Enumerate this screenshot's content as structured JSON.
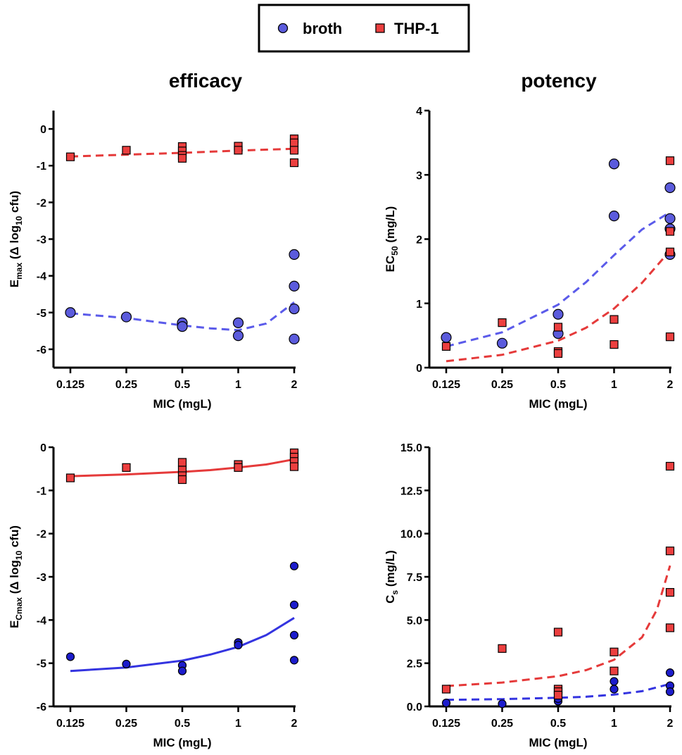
{
  "legend": {
    "series": [
      {
        "name": "broth",
        "marker": "circle",
        "color": "#5b5bdc"
      },
      {
        "name": "THP-1",
        "marker": "square",
        "color": "#ec3f3f"
      }
    ]
  },
  "column_titles": [
    "efficacy",
    "potency"
  ],
  "colors": {
    "broth_fill": "#5b5bdc",
    "broth_fill_dark": "#1c1ccc",
    "broth_line": "#3434e0",
    "broth_line_light": "#5b5bea",
    "thp1_fill": "#ec3f3f",
    "thp1_line": "#e53a3a",
    "axis": "#000000"
  },
  "chart_data": [
    {
      "id": "emax",
      "type": "scatter",
      "title": "efficacy",
      "xlabel": "MIC (mgL)",
      "ylabel_main": "E",
      "ylabel_sub": "max",
      "ylabel_rest_pre": " (Δ log",
      "ylabel_rest_sub": "10",
      "ylabel_rest_post": " cfu)",
      "x_scale": "log2",
      "x_ticks": [
        0.125,
        0.25,
        0.5,
        1,
        2
      ],
      "x_tick_labels": [
        "0.125",
        "0.25",
        "0.5",
        "1",
        "2"
      ],
      "ylim": [
        -6.5,
        0.5
      ],
      "y_ticks": [
        0,
        -1,
        -2,
        -3,
        -4,
        -5,
        -6
      ],
      "y_tick_labels": [
        "0",
        "-1",
        "-2",
        "-3",
        "-4",
        "-5",
        "-6"
      ],
      "series": [
        {
          "name": "broth",
          "marker": "circle",
          "dark": false,
          "points": [
            [
              0.125,
              -5.0
            ],
            [
              0.25,
              -5.12
            ],
            [
              0.5,
              -5.28
            ],
            [
              0.5,
              -5.38
            ],
            [
              1,
              -5.28
            ],
            [
              1,
              -5.63
            ],
            [
              2,
              -3.42
            ],
            [
              2,
              -4.28
            ],
            [
              2,
              -4.9
            ],
            [
              2,
              -5.72
            ]
          ],
          "fit": {
            "style": "dashed",
            "points": [
              [
                0.125,
                -5.02
              ],
              [
                0.25,
                -5.15
              ],
              [
                0.5,
                -5.35
              ],
              [
                0.707,
                -5.43
              ],
              [
                1,
                -5.48
              ],
              [
                1.414,
                -5.3
              ],
              [
                2,
                -4.72
              ]
            ]
          }
        },
        {
          "name": "THP-1",
          "marker": "square",
          "points": [
            [
              0.125,
              -0.76
            ],
            [
              0.25,
              -0.58
            ],
            [
              0.5,
              -0.48
            ],
            [
              0.5,
              -0.6
            ],
            [
              0.5,
              -0.72
            ],
            [
              0.5,
              -0.8
            ],
            [
              1,
              -0.47
            ],
            [
              1,
              -0.58
            ],
            [
              2,
              -0.27
            ],
            [
              2,
              -0.38
            ],
            [
              2,
              -0.58
            ],
            [
              2,
              -0.92
            ]
          ],
          "fit": {
            "style": "dashed",
            "points": [
              [
                0.125,
                -0.75
              ],
              [
                0.25,
                -0.7
              ],
              [
                0.5,
                -0.65
              ],
              [
                1,
                -0.59
              ],
              [
                2,
                -0.54
              ]
            ]
          }
        }
      ]
    },
    {
      "id": "ec50",
      "type": "scatter",
      "title": "potency",
      "xlabel": "MIC (mgL)",
      "ylabel_main": "EC",
      "ylabel_sub": "50",
      "ylabel_rest_pre": " (mg/L)",
      "ylabel_rest_sub": "",
      "ylabel_rest_post": "",
      "x_scale": "log2",
      "x_ticks": [
        0.125,
        0.25,
        0.5,
        1,
        2
      ],
      "x_tick_labels": [
        "0.125",
        "0.25",
        "0.5",
        "1",
        "2"
      ],
      "ylim": [
        0,
        4
      ],
      "y_ticks": [
        0,
        1,
        2,
        3,
        4
      ],
      "y_tick_labels": [
        "0",
        "1",
        "2",
        "3",
        "4"
      ],
      "series": [
        {
          "name": "broth",
          "marker": "circle",
          "dark": false,
          "points": [
            [
              0.125,
              0.47
            ],
            [
              0.25,
              0.38
            ],
            [
              0.5,
              0.83
            ],
            [
              0.5,
              0.53
            ],
            [
              1,
              3.17
            ],
            [
              1,
              2.36
            ],
            [
              2,
              2.8
            ],
            [
              2,
              2.32
            ],
            [
              2,
              2.16
            ],
            [
              2,
              1.76
            ]
          ],
          "fit": {
            "style": "dashed",
            "points": [
              [
                0.125,
                0.33
              ],
              [
                0.25,
                0.55
              ],
              [
                0.5,
                0.98
              ],
              [
                0.707,
                1.33
              ],
              [
                1,
                1.75
              ],
              [
                1.414,
                2.15
              ],
              [
                2,
                2.42
              ]
            ]
          }
        },
        {
          "name": "THP-1",
          "marker": "square",
          "points": [
            [
              0.125,
              0.33
            ],
            [
              0.25,
              0.7
            ],
            [
              0.5,
              0.63
            ],
            [
              0.5,
              0.25
            ],
            [
              0.5,
              0.22
            ],
            [
              1,
              0.75
            ],
            [
              1,
              0.36
            ],
            [
              2,
              3.22
            ],
            [
              2,
              2.12
            ],
            [
              2,
              1.8
            ],
            [
              2,
              0.48
            ]
          ],
          "fit": {
            "style": "dashed",
            "points": [
              [
                0.125,
                0.1
              ],
              [
                0.25,
                0.2
              ],
              [
                0.5,
                0.42
              ],
              [
                0.707,
                0.62
              ],
              [
                1,
                0.92
              ],
              [
                1.414,
                1.32
              ],
              [
                2,
                1.82
              ]
            ]
          }
        }
      ]
    },
    {
      "id": "ecmax",
      "type": "scatter",
      "title": "",
      "xlabel": "MIC (mgL)",
      "ylabel_main": "E",
      "ylabel_sub": "Cmax",
      "ylabel_rest_pre": " (Δ log",
      "ylabel_rest_sub": "10",
      "ylabel_rest_post": " cfu)",
      "x_scale": "log2",
      "x_ticks": [
        0.125,
        0.25,
        0.5,
        1,
        2
      ],
      "x_tick_labels": [
        "0.125",
        "0.25",
        "0.5",
        "1",
        "2"
      ],
      "ylim": [
        -6,
        0
      ],
      "y_ticks": [
        0,
        -1,
        -2,
        -3,
        -4,
        -5,
        -6
      ],
      "y_tick_labels": [
        "0",
        "-1",
        "-2",
        "-3",
        "-4",
        "-5",
        "-6"
      ],
      "series": [
        {
          "name": "broth",
          "marker": "circle",
          "dark": true,
          "points": [
            [
              0.125,
              -4.85
            ],
            [
              0.25,
              -5.02
            ],
            [
              0.5,
              -5.05
            ],
            [
              0.5,
              -5.18
            ],
            [
              1,
              -4.52
            ],
            [
              1,
              -4.58
            ],
            [
              2,
              -2.75
            ],
            [
              2,
              -3.65
            ],
            [
              2,
              -4.35
            ],
            [
              2,
              -4.93
            ]
          ],
          "fit": {
            "style": "solid",
            "points": [
              [
                0.125,
                -5.18
              ],
              [
                0.25,
                -5.1
              ],
              [
                0.5,
                -4.94
              ],
              [
                0.707,
                -4.8
              ],
              [
                1,
                -4.62
              ],
              [
                1.414,
                -4.35
              ],
              [
                2,
                -3.95
              ]
            ]
          }
        },
        {
          "name": "THP-1",
          "marker": "square",
          "points": [
            [
              0.125,
              -0.71
            ],
            [
              0.25,
              -0.47
            ],
            [
              0.5,
              -0.35
            ],
            [
              0.5,
              -0.53
            ],
            [
              0.5,
              -0.66
            ],
            [
              0.5,
              -0.75
            ],
            [
              1,
              -0.4
            ],
            [
              1,
              -0.47
            ],
            [
              2,
              -0.13
            ],
            [
              2,
              -0.23
            ],
            [
              2,
              -0.33
            ],
            [
              2,
              -0.45
            ]
          ],
          "fit": {
            "style": "solid",
            "points": [
              [
                0.125,
                -0.67
              ],
              [
                0.25,
                -0.63
              ],
              [
                0.5,
                -0.57
              ],
              [
                0.707,
                -0.53
              ],
              [
                1,
                -0.47
              ],
              [
                1.414,
                -0.4
              ],
              [
                2,
                -0.28
              ]
            ]
          }
        }
      ]
    },
    {
      "id": "cs",
      "type": "scatter",
      "title": "",
      "xlabel": "MIC (mgL)",
      "ylabel_main": "C",
      "ylabel_sub": "s",
      "ylabel_rest_pre": " (mg/L)",
      "ylabel_rest_sub": "",
      "ylabel_rest_post": "",
      "x_scale": "log2",
      "x_ticks": [
        0.125,
        0.25,
        0.5,
        1,
        2
      ],
      "x_tick_labels": [
        "0.125",
        "0.25",
        "0.5",
        "1",
        "2"
      ],
      "ylim": [
        0,
        15
      ],
      "y_ticks": [
        0,
        2.5,
        5,
        7.5,
        10,
        12.5,
        15
      ],
      "y_tick_labels": [
        "0.0",
        "2.5",
        "5.0",
        "7.5",
        "10.0",
        "12.5",
        "15.0"
      ],
      "series": [
        {
          "name": "broth",
          "marker": "circle",
          "dark": true,
          "points": [
            [
              0.125,
              0.2
            ],
            [
              0.25,
              0.15
            ],
            [
              0.5,
              0.3
            ],
            [
              0.5,
              0.45
            ],
            [
              1,
              1.45
            ],
            [
              1,
              1.0
            ],
            [
              2,
              1.95
            ],
            [
              2,
              1.2
            ],
            [
              2,
              0.85
            ]
          ],
          "fit": {
            "style": "dashed",
            "points": [
              [
                0.125,
                0.38
              ],
              [
                0.25,
                0.42
              ],
              [
                0.5,
                0.5
              ],
              [
                0.707,
                0.56
              ],
              [
                1,
                0.68
              ],
              [
                1.414,
                0.88
              ],
              [
                2,
                1.3
              ]
            ]
          }
        },
        {
          "name": "THP-1",
          "marker": "square",
          "points": [
            [
              0.125,
              1.0
            ],
            [
              0.25,
              3.35
            ],
            [
              0.5,
              4.3
            ],
            [
              0.5,
              1.0
            ],
            [
              0.5,
              0.85
            ],
            [
              0.5,
              0.65
            ],
            [
              1,
              3.15
            ],
            [
              1,
              2.05
            ],
            [
              2,
              13.9
            ],
            [
              2,
              9.0
            ],
            [
              2,
              6.6
            ],
            [
              2,
              4.55
            ]
          ],
          "fit": {
            "style": "dashed",
            "points": [
              [
                0.125,
                1.18
              ],
              [
                0.25,
                1.38
              ],
              [
                0.5,
                1.75
              ],
              [
                0.707,
                2.1
              ],
              [
                1,
                2.7
              ],
              [
                1.414,
                4.0
              ],
              [
                1.7,
                5.6
              ],
              [
                2,
                8.15
              ]
            ]
          }
        }
      ]
    }
  ]
}
